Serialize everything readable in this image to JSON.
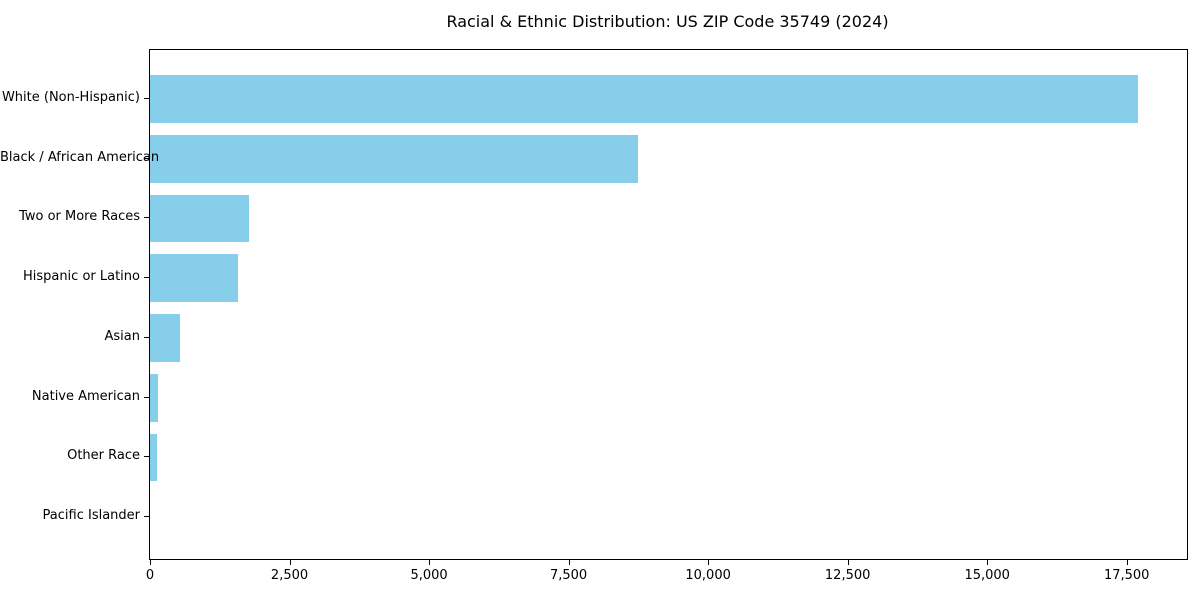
{
  "chart_data": {
    "type": "bar",
    "orientation": "horizontal",
    "title": "Racial & Ethnic Distribution: US ZIP Code 35749 (2024)",
    "categories": [
      "White (Non-Hispanic)",
      "Black / African American",
      "Two or More Races",
      "Hispanic or Latino",
      "Asian",
      "Native American",
      "Other Race",
      "Pacific Islander"
    ],
    "values": [
      17700,
      8750,
      1770,
      1580,
      540,
      150,
      130,
      0
    ],
    "xlabel": "",
    "ylabel": "",
    "xlim": [
      0,
      18580
    ],
    "xticks": [
      0,
      2500,
      5000,
      7500,
      10000,
      12500,
      15000,
      17500
    ],
    "xtick_labels": [
      "0",
      "2,500",
      "5,000",
      "7,500",
      "10,000",
      "12,500",
      "15,000",
      "17,500"
    ],
    "bar_color": "#87CEEB",
    "grid": false,
    "legend": false,
    "background_color": "#ffffff",
    "spine_color": "#000000"
  }
}
